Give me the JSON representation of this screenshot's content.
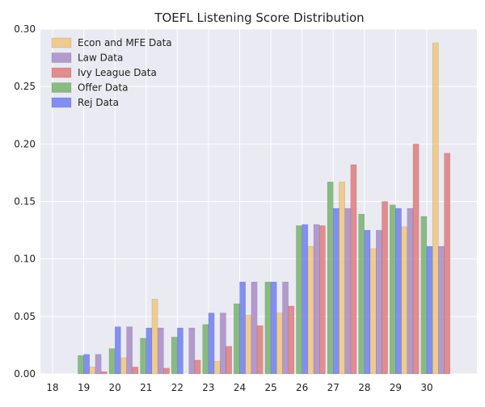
{
  "chart_data": {
    "type": "bar",
    "title": "TOEFL Listening Score Distribution",
    "xlabel": "",
    "ylabel": "",
    "categories": [
      "18",
      "19",
      "20",
      "21",
      "22",
      "23",
      "24",
      "25",
      "26",
      "27",
      "28",
      "29",
      "30"
    ],
    "ylim": [
      0,
      0.3
    ],
    "yticks": [
      "0.00",
      "0.05",
      "0.10",
      "0.15",
      "0.20",
      "0.25",
      "0.30"
    ],
    "yticks_values": [
      0,
      0.05,
      0.1,
      0.15,
      0.2,
      0.25,
      0.3
    ],
    "grid": true,
    "legend_position": "top-left",
    "series": [
      {
        "name": "Offer Data",
        "color": "#77b36e",
        "values": [
          0,
          0.016,
          0.022,
          0.031,
          0.032,
          0.043,
          0.061,
          0.08,
          0.129,
          0.167,
          0.139,
          0.147,
          0.137
        ]
      },
      {
        "name": "Rej Data",
        "color": "#6f7ff2",
        "values": [
          0,
          0.017,
          0.041,
          0.04,
          0.04,
          0.053,
          0.08,
          0.08,
          0.13,
          0.144,
          0.125,
          0.144,
          0.111
        ]
      },
      {
        "name": "Econ and MFE Data",
        "color": "#f0c77d",
        "values": [
          0,
          0.006,
          0.014,
          0.065,
          0,
          0.011,
          0.051,
          0.053,
          0.111,
          0.167,
          0.109,
          0.128,
          0.288
        ]
      },
      {
        "name": "Law Data",
        "color": "#a98cc7",
        "values": [
          0,
          0.017,
          0.041,
          0.04,
          0.04,
          0.053,
          0.08,
          0.08,
          0.13,
          0.144,
          0.125,
          0.144,
          0.111
        ]
      },
      {
        "name": "Ivy League Data",
        "color": "#e07b7b",
        "values": [
          0,
          0.002,
          0.006,
          0.005,
          0.012,
          0.024,
          0.042,
          0.059,
          0.129,
          0.182,
          0.15,
          0.2,
          0.192
        ]
      }
    ],
    "legend_order": [
      "Econ and MFE Data",
      "Law Data",
      "Ivy League Data",
      "Offer Data",
      "Rej Data"
    ]
  }
}
